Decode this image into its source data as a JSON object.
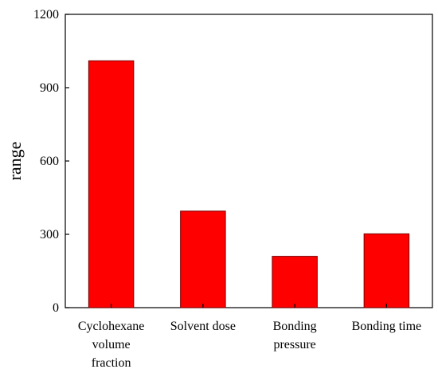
{
  "chart_data": {
    "type": "bar",
    "title": "",
    "xlabel": "",
    "ylabel": "range",
    "categories": [
      [
        "Cyclohexane",
        "volume",
        "fraction"
      ],
      [
        "Solvent dose"
      ],
      [
        "Bonding",
        "pressure"
      ],
      [
        "Bonding time"
      ]
    ],
    "values": [
      1010,
      395,
      210,
      302
    ],
    "ylim": [
      0,
      1200
    ],
    "yticks": [
      0,
      300,
      600,
      900,
      1200
    ],
    "bar_color": "#ff0000",
    "bar_edge_color": "#7a0000",
    "grid": false,
    "legend": "none"
  }
}
